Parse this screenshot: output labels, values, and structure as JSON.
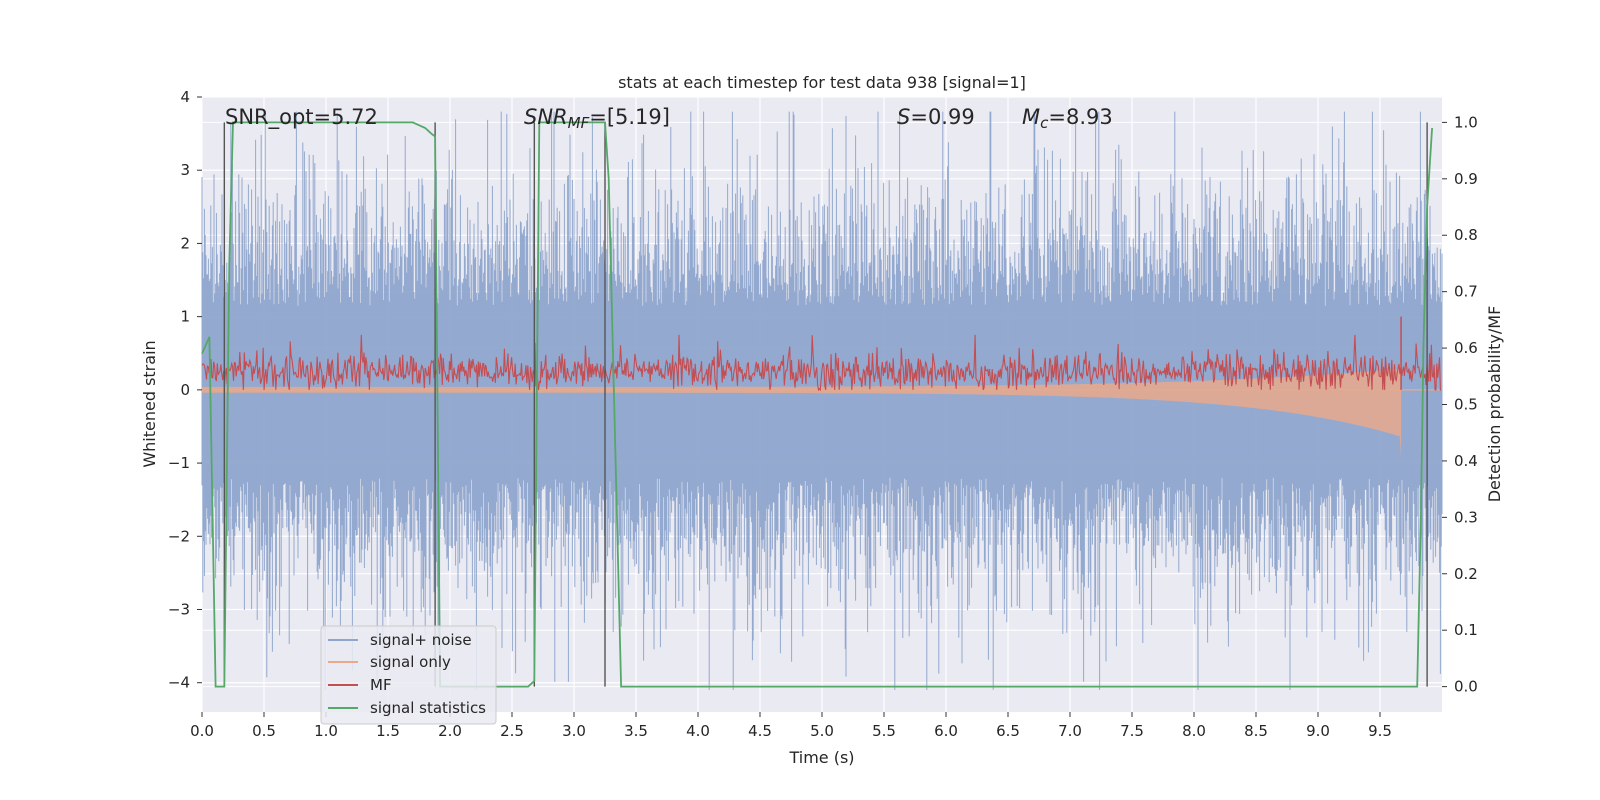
{
  "chart_data": {
    "type": "line",
    "title": "stats at each timestep for test data 938 [signal=1]",
    "xlabel": "Time (s)",
    "ylabel": "Whitened strain",
    "y2label": "Detection probability/MF",
    "xlim": [
      0.0,
      10.0
    ],
    "ylim": [
      -4.4,
      4.0
    ],
    "y2lim": [
      -0.045,
      1.045
    ],
    "grid": true,
    "legend_position": "lower-left",
    "x_ticks": [
      "0.0",
      "0.5",
      "1.0",
      "1.5",
      "2.0",
      "2.5",
      "3.0",
      "3.5",
      "4.0",
      "4.5",
      "5.0",
      "5.5",
      "6.0",
      "6.5",
      "7.0",
      "7.5",
      "8.0",
      "8.5",
      "9.0",
      "9.5"
    ],
    "x_tick_values": [
      0.0,
      0.5,
      1.0,
      1.5,
      2.0,
      2.5,
      3.0,
      3.5,
      4.0,
      4.5,
      5.0,
      5.5,
      6.0,
      6.5,
      7.0,
      7.5,
      8.0,
      8.5,
      9.0,
      9.5
    ],
    "y_ticks": [
      "4",
      "3",
      "2",
      "1",
      "0",
      "−1",
      "−2",
      "−3",
      "−4"
    ],
    "y_tick_values": [
      4,
      3,
      2,
      1,
      0,
      -1,
      -2,
      -3,
      -4
    ],
    "y2_ticks": [
      "1.0",
      "0.9",
      "0.8",
      "0.7",
      "0.6",
      "0.5",
      "0.4",
      "0.3",
      "0.2",
      "0.1",
      "0.0"
    ],
    "y2_tick_values": [
      1.0,
      0.9,
      0.8,
      0.7,
      0.6,
      0.5,
      0.4,
      0.3,
      0.2,
      0.1,
      0.0
    ],
    "annotations": {
      "snr_opt": "SNR_opt=5.72",
      "snr_mf_label": "SNR",
      "snr_mf_sub": "MF",
      "snr_mf_value": "=[5.19]",
      "s_label": "S",
      "s_value": "=0.99",
      "mc_label": "M",
      "mc_sub": "c",
      "mc_value": "=8.93"
    },
    "series": [
      {
        "name": "signal+ noise",
        "color": "#8fa5cc",
        "noise_sigma": 1.0,
        "range_approx": [
          -4.1,
          3.8
        ]
      },
      {
        "name": "signal only",
        "color": "#e8a98c",
        "envelope_end_x": 9.67,
        "envelope_end_min": -0.95
      },
      {
        "name": "MF",
        "color": "#c44e52",
        "baseline_y": 0.25,
        "range_approx": [
          0.0,
          1.0
        ]
      },
      {
        "name": "signal statistics",
        "color": "#55a868",
        "axis": "right",
        "x": [
          0.0,
          0.06,
          0.11,
          0.18,
          0.22,
          0.25,
          0.5,
          1.0,
          1.5,
          1.7,
          1.8,
          1.85,
          1.88,
          1.92,
          2.0,
          2.5,
          2.63,
          2.68,
          2.72,
          2.75,
          3.0,
          3.25,
          3.28,
          3.38,
          3.5,
          9.5,
          9.75,
          9.8,
          9.83,
          9.85,
          9.88,
          9.92
        ],
        "values": [
          0.59,
          0.62,
          0.0,
          0.0,
          0.75,
          1.0,
          1.0,
          1.0,
          1.0,
          1.0,
          0.99,
          0.98,
          0.975,
          0.0,
          0.0,
          0.0,
          0.0,
          0.01,
          1.0,
          1.0,
          1.0,
          1.0,
          0.9,
          0.0,
          0.0,
          0.0,
          0.0,
          0.0,
          0.3,
          0.6,
          0.85,
          0.99
        ]
      }
    ],
    "vertical_markers_x": [
      0.18,
      1.88,
      2.68,
      3.25,
      9.88
    ]
  }
}
